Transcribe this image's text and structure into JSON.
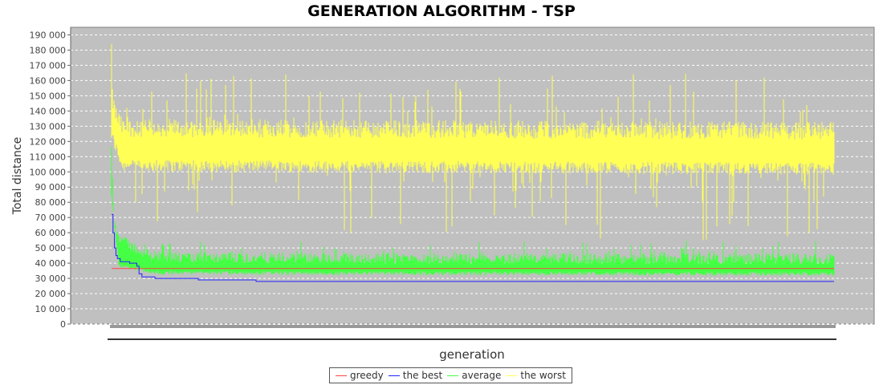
{
  "chart_data": {
    "type": "line",
    "title": "GENERATION ALGORITHM - TSP",
    "xlabel": "generation",
    "ylabel": "Total distance",
    "ylim": [
      0,
      195000
    ],
    "yticks": [
      0,
      10000,
      20000,
      30000,
      40000,
      50000,
      60000,
      70000,
      80000,
      90000,
      100000,
      110000,
      120000,
      130000,
      140000,
      150000,
      160000,
      170000,
      180000,
      190000
    ],
    "ytick_labels": [
      "0",
      "10 000",
      "20 000",
      "30 000",
      "40 000",
      "50 000",
      "60 000",
      "70 000",
      "80 000",
      "90 000",
      "100 000",
      "110 000",
      "120 000",
      "130 000",
      "140 000",
      "150 000",
      "160 000",
      "170 000",
      "180 000",
      "190 000"
    ],
    "grid": true,
    "legend_position": "bottom-center",
    "x_range": [
      0,
      1000
    ],
    "series": [
      {
        "name": "greedy",
        "color": "#ff4444",
        "kind": "constant",
        "value": 36500
      },
      {
        "name": "the best",
        "color": "#2222ff",
        "kind": "step",
        "points": [
          [
            0,
            72000
          ],
          [
            2,
            60000
          ],
          [
            4,
            50000
          ],
          [
            6,
            45000
          ],
          [
            8,
            43000
          ],
          [
            12,
            41000
          ],
          [
            25,
            40000
          ],
          [
            35,
            38000
          ],
          [
            38,
            33000
          ],
          [
            42,
            31000
          ],
          [
            60,
            30000
          ],
          [
            120,
            29000
          ],
          [
            200,
            28000
          ],
          [
            1000,
            28000
          ]
        ]
      },
      {
        "name": "average",
        "color": "#44ff44",
        "kind": "noisy",
        "points": [
          [
            0,
            110000
          ],
          [
            3,
            68000
          ],
          [
            8,
            55000
          ],
          [
            20,
            50000
          ],
          [
            50,
            42000
          ],
          [
            100,
            40000
          ],
          [
            1000,
            39500
          ]
        ],
        "low_points": [
          [
            0,
            84000
          ],
          [
            10,
            40000
          ],
          [
            60,
            35000
          ],
          [
            1000,
            34000
          ]
        ],
        "spike_max": 55000
      },
      {
        "name": "the worst",
        "color": "#ffff55",
        "kind": "noisy",
        "points": [
          [
            0,
            140000
          ],
          [
            5,
            128000
          ],
          [
            15,
            118000
          ],
          [
            1000,
            116000
          ]
        ],
        "low_points": [
          [
            0,
            120000
          ],
          [
            15,
            100000
          ],
          [
            1000,
            98000
          ]
        ],
        "peak": 184000,
        "spike_max": 165000,
        "dip_min": 55000
      }
    ]
  }
}
